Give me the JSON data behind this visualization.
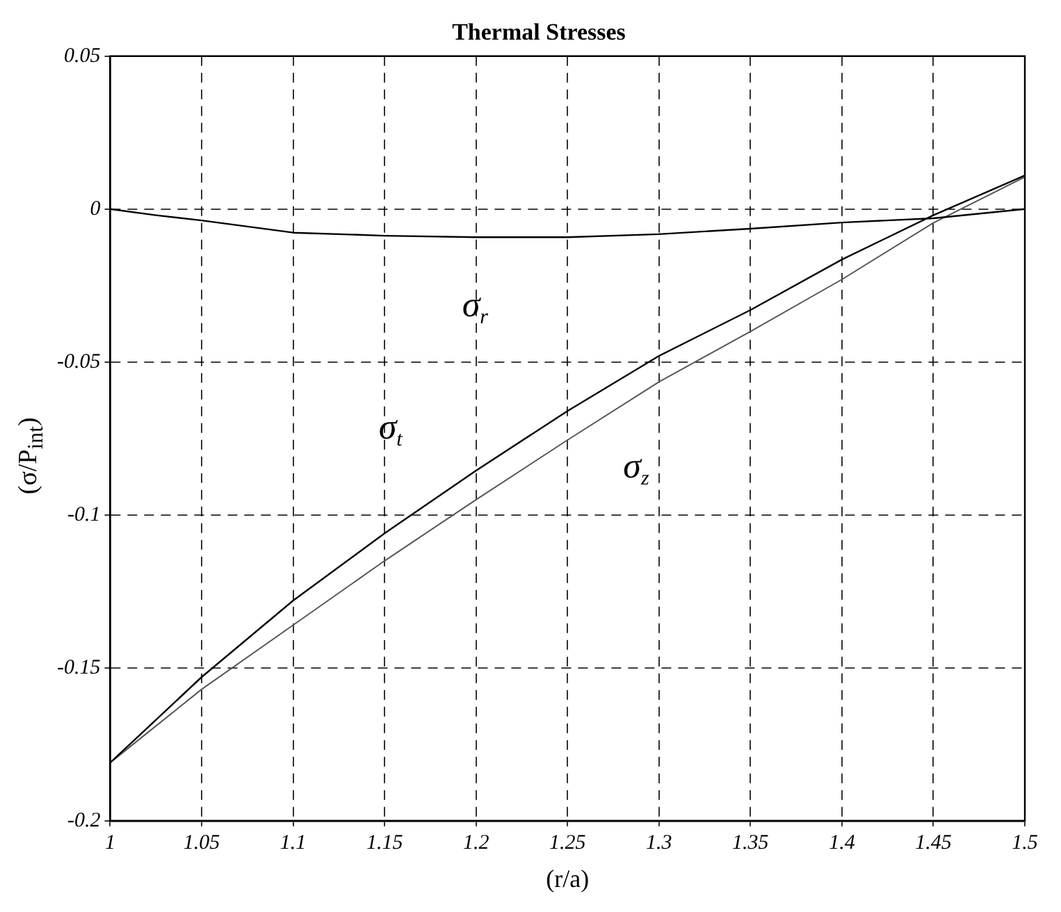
{
  "chart_data": {
    "type": "line",
    "title": "Thermal Stresses",
    "xlabel": "(r/a)",
    "ylabel": "(σ/P$_{int}$)",
    "x": [
      1,
      1.025,
      1.05,
      1.1,
      1.15,
      1.2,
      1.25,
      1.3,
      1.35,
      1.4,
      1.45,
      1.5
    ],
    "series": [
      {
        "name": "σ$_{r}$",
        "color": "#000000",
        "values": [
          0,
          -0.002,
          -0.0037,
          -0.0077,
          -0.0087,
          -0.0092,
          -0.0092,
          -0.0082,
          -0.0064,
          -0.0044,
          -0.003,
          0
        ]
      },
      {
        "name": "σ$_{t}$",
        "color": "#000000",
        "values": [
          -0.181,
          -0.167,
          -0.153,
          -0.128,
          -0.106,
          -0.0855,
          -0.066,
          -0.048,
          -0.033,
          -0.0165,
          -0.002,
          0.011
        ]
      },
      {
        "name": "σ$_{z}$",
        "color": "#555555",
        "values": [
          -0.181,
          -0.169,
          -0.157,
          -0.136,
          -0.115,
          -0.095,
          -0.0755,
          -0.0565,
          -0.04,
          -0.023,
          -0.0045,
          0.0105
        ]
      }
    ],
    "xlim": [
      1,
      1.5
    ],
    "xticks": [
      1,
      1.05,
      1.1,
      1.15,
      1.2,
      1.25,
      1.3,
      1.35,
      1.4,
      1.45,
      1.5
    ],
    "ylim": [
      -0.2,
      0.05
    ],
    "yticks": [
      -0.2,
      -0.15,
      -0.1,
      -0.05,
      0,
      0.05
    ],
    "grid": true,
    "legend": false,
    "marker": "none",
    "line_style": "solid"
  }
}
